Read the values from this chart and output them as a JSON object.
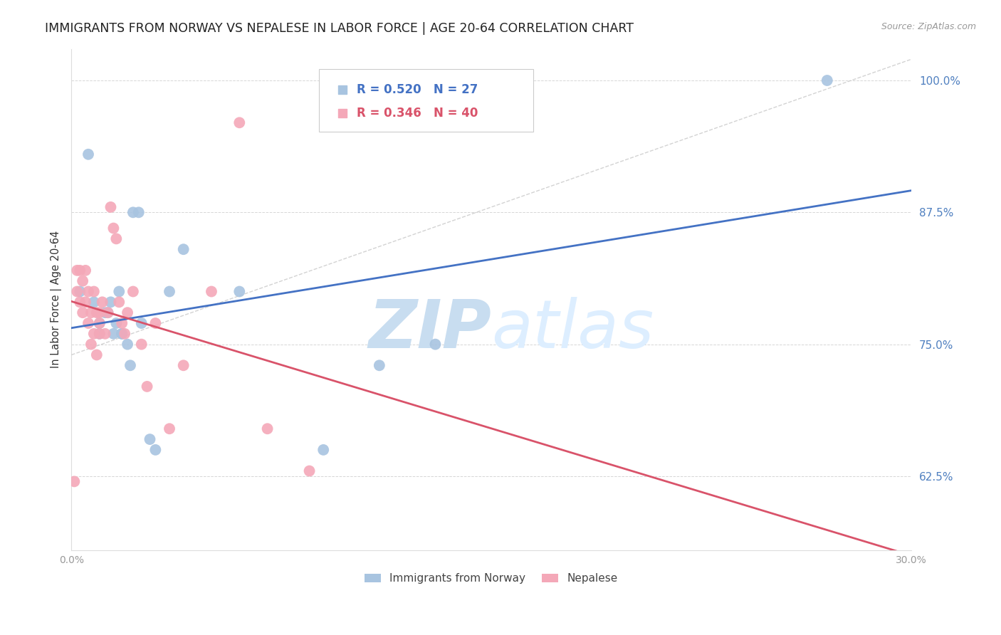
{
  "title": "IMMIGRANTS FROM NORWAY VS NEPALESE IN LABOR FORCE | AGE 20-64 CORRELATION CHART",
  "source": "Source: ZipAtlas.com",
  "ylabel": "In Labor Force | Age 20-64",
  "xlim": [
    0.0,
    0.3
  ],
  "ylim": [
    0.555,
    1.03
  ],
  "yticks": [
    0.625,
    0.75,
    0.875,
    1.0
  ],
  "ytick_labels": [
    "62.5%",
    "75.0%",
    "87.5%",
    "100.0%"
  ],
  "xticks": [
    0.0,
    0.05,
    0.1,
    0.15,
    0.2,
    0.25,
    0.3
  ],
  "xtick_labels": [
    "0.0%",
    "",
    "",
    "",
    "",
    "",
    "30.0%"
  ],
  "norway_R": 0.52,
  "norway_N": 27,
  "nepal_R": 0.346,
  "nepal_N": 40,
  "norway_color": "#a8c4e0",
  "nepal_color": "#f4a8b8",
  "norway_line_color": "#4472c4",
  "nepal_line_color": "#d9536a",
  "trendline_color": "#c8c8c8",
  "norway_scatter_x": [
    0.003,
    0.006,
    0.008,
    0.01,
    0.01,
    0.012,
    0.013,
    0.014,
    0.015,
    0.016,
    0.017,
    0.018,
    0.018,
    0.02,
    0.021,
    0.022,
    0.024,
    0.025,
    0.028,
    0.03,
    0.035,
    0.04,
    0.06,
    0.09,
    0.11,
    0.13,
    0.27
  ],
  "norway_scatter_y": [
    0.8,
    0.93,
    0.79,
    0.77,
    0.76,
    0.78,
    0.78,
    0.79,
    0.76,
    0.77,
    0.8,
    0.76,
    0.76,
    0.75,
    0.73,
    0.875,
    0.875,
    0.77,
    0.66,
    0.65,
    0.8,
    0.84,
    0.8,
    0.65,
    0.73,
    0.75,
    1.0
  ],
  "nepal_scatter_x": [
    0.001,
    0.002,
    0.002,
    0.003,
    0.003,
    0.004,
    0.004,
    0.005,
    0.005,
    0.006,
    0.006,
    0.007,
    0.007,
    0.008,
    0.008,
    0.009,
    0.009,
    0.01,
    0.01,
    0.01,
    0.011,
    0.012,
    0.013,
    0.014,
    0.015,
    0.016,
    0.017,
    0.018,
    0.019,
    0.02,
    0.022,
    0.025,
    0.027,
    0.03,
    0.035,
    0.04,
    0.05,
    0.06,
    0.07,
    0.085
  ],
  "nepal_scatter_y": [
    0.62,
    0.8,
    0.82,
    0.82,
    0.79,
    0.81,
    0.78,
    0.82,
    0.79,
    0.8,
    0.77,
    0.78,
    0.75,
    0.8,
    0.76,
    0.74,
    0.78,
    0.78,
    0.77,
    0.76,
    0.79,
    0.76,
    0.78,
    0.88,
    0.86,
    0.85,
    0.79,
    0.77,
    0.76,
    0.78,
    0.8,
    0.75,
    0.71,
    0.77,
    0.67,
    0.73,
    0.8,
    0.96,
    0.67,
    0.63
  ],
  "watermark_zip": "ZIP",
  "watermark_atlas": "atlas",
  "watermark_color": "#ddeeff",
  "legend_label_norway": "Immigrants from Norway",
  "legend_label_nepal": "Nepalese",
  "background_color": "#ffffff",
  "grid_color": "#cccccc",
  "right_tick_color": "#5080c0"
}
